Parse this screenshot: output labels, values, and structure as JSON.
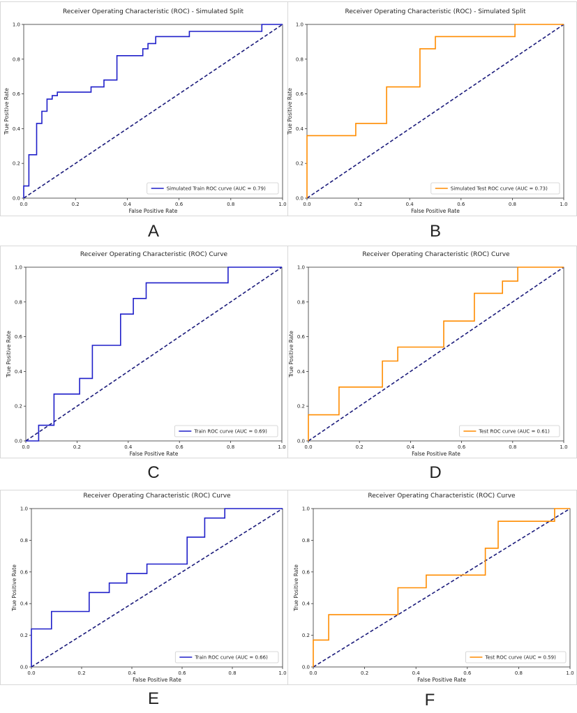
{
  "colors": {
    "train": "#1f1fc9",
    "test": "#ff8c00",
    "diagonal": "#1a1a7a",
    "axis": "#333333"
  },
  "panel_letters": {
    "A": "A",
    "B": "B",
    "C": "C",
    "D": "D",
    "E": "E",
    "F": "F"
  },
  "chart_data": [
    {
      "id": "A",
      "type": "line",
      "title": "Receiver Operating Characteristic (ROC) - Simulated Split",
      "xlabel": "False Positive Rate",
      "ylabel": "True Positive Rate",
      "xlim": [
        0,
        1
      ],
      "ylim": [
        0,
        1
      ],
      "xticks": [
        "0.0",
        "0.2",
        "0.4",
        "0.6",
        "0.8",
        "1.0"
      ],
      "yticks": [
        "0.0",
        "0.2",
        "0.4",
        "0.6",
        "0.8",
        "1.0"
      ],
      "legend": "bottom-right",
      "series": [
        {
          "name": "Simulated Train ROC curve (AUC = 0.79)",
          "color": "train",
          "fpr": [
            0,
            0,
            0.02,
            0.02,
            0.05,
            0.05,
            0.07,
            0.07,
            0.09,
            0.09,
            0.11,
            0.11,
            0.13,
            0.13,
            0.26,
            0.26,
            0.31,
            0.31,
            0.36,
            0.36,
            0.46,
            0.46,
            0.48,
            0.48,
            0.51,
            0.51,
            0.64,
            0.64,
            0.92,
            0.92,
            1.0
          ],
          "tpr": [
            0,
            0.07,
            0.07,
            0.25,
            0.25,
            0.43,
            0.43,
            0.5,
            0.5,
            0.57,
            0.57,
            0.59,
            0.59,
            0.61,
            0.61,
            0.64,
            0.64,
            0.68,
            0.68,
            0.82,
            0.82,
            0.86,
            0.86,
            0.89,
            0.89,
            0.93,
            0.93,
            0.96,
            0.96,
            1.0,
            1.0
          ]
        }
      ]
    },
    {
      "id": "B",
      "type": "line",
      "title": "Receiver Operating Characteristic (ROC) - Simulated Split",
      "xlabel": "False Positive Rate",
      "ylabel": "True Positive Rate",
      "xlim": [
        0,
        1
      ],
      "ylim": [
        0,
        1
      ],
      "xticks": [
        "0.0",
        "0.2",
        "0.4",
        "0.6",
        "0.8",
        "1.0"
      ],
      "yticks": [
        "0.0",
        "0.2",
        "0.4",
        "0.6",
        "0.8",
        "1.0"
      ],
      "legend": "bottom-right",
      "series": [
        {
          "name": "Simulated Test ROC curve (AUC = 0.73)",
          "color": "test",
          "fpr": [
            0,
            0,
            0.19,
            0.19,
            0.31,
            0.31,
            0.44,
            0.44,
            0.5,
            0.5,
            0.81,
            0.81,
            1.0
          ],
          "tpr": [
            0,
            0.36,
            0.36,
            0.43,
            0.43,
            0.64,
            0.64,
            0.86,
            0.86,
            0.93,
            0.93,
            1.0,
            1.0
          ]
        }
      ]
    },
    {
      "id": "C",
      "type": "line",
      "title": "Receiver Operating Characteristic (ROC) Curve",
      "xlabel": "False Positive Rate",
      "ylabel": "True Positive Rate",
      "xlim": [
        0,
        1
      ],
      "ylim": [
        0,
        1
      ],
      "xticks": [
        "0.0",
        "0.2",
        "0.4",
        "0.6",
        "0.8",
        "1.0"
      ],
      "yticks": [
        "0.0",
        "0.2",
        "0.4",
        "0.6",
        "0.8",
        "1.0"
      ],
      "legend": "bottom-right",
      "series": [
        {
          "name": "Train ROC curve (AUC = 0.69)",
          "color": "train",
          "fpr": [
            0,
            0.05,
            0.05,
            0.11,
            0.11,
            0.21,
            0.21,
            0.26,
            0.26,
            0.37,
            0.37,
            0.42,
            0.42,
            0.47,
            0.47,
            0.79,
            0.79,
            1.0
          ],
          "tpr": [
            0,
            0,
            0.09,
            0.09,
            0.27,
            0.27,
            0.36,
            0.36,
            0.55,
            0.55,
            0.73,
            0.73,
            0.82,
            0.82,
            0.91,
            0.91,
            1.0,
            1.0
          ]
        }
      ]
    },
    {
      "id": "D",
      "type": "line",
      "title": "Receiver Operating Characteristic (ROC) Curve",
      "xlabel": "False Positive Rate",
      "ylabel": "True Positive Rate",
      "xlim": [
        0,
        1
      ],
      "ylim": [
        0,
        1
      ],
      "xticks": [
        "0.0",
        "0.2",
        "0.4",
        "0.6",
        "0.8",
        "1.0"
      ],
      "yticks": [
        "0.0",
        "0.2",
        "0.4",
        "0.6",
        "0.8",
        "1.0"
      ],
      "legend": "bottom-right",
      "series": [
        {
          "name": "Test ROC curve (AUC = 0.61)",
          "color": "test",
          "fpr": [
            0,
            0,
            0.12,
            0.12,
            0.29,
            0.29,
            0.35,
            0.35,
            0.53,
            0.53,
            0.65,
            0.65,
            0.76,
            0.76,
            0.82,
            0.82,
            1.0
          ],
          "tpr": [
            0,
            0.15,
            0.15,
            0.31,
            0.31,
            0.46,
            0.46,
            0.54,
            0.54,
            0.69,
            0.69,
            0.85,
            0.85,
            0.92,
            0.92,
            1.0,
            1.0
          ]
        }
      ]
    },
    {
      "id": "E",
      "type": "line",
      "title": "Receiver Operating Characteristic (ROC) Curve",
      "xlabel": "False Positive Rate",
      "ylabel": "True Positive Rate",
      "xlim": [
        0,
        1
      ],
      "ylim": [
        0,
        1
      ],
      "xticks": [
        "0.0",
        "0.2",
        "0.4",
        "0.6",
        "0.8",
        "1.0"
      ],
      "yticks": [
        "0.0",
        "0.2",
        "0.4",
        "0.6",
        "0.8",
        "1.0"
      ],
      "legend": "bottom-right",
      "series": [
        {
          "name": "Train ROC curve (AUC = 0.66)",
          "color": "train",
          "fpr": [
            0,
            0,
            0.08,
            0.08,
            0.23,
            0.23,
            0.31,
            0.31,
            0.38,
            0.38,
            0.46,
            0.46,
            0.62,
            0.62,
            0.69,
            0.69,
            0.77,
            0.77,
            1.0
          ],
          "tpr": [
            0,
            0.24,
            0.24,
            0.35,
            0.35,
            0.47,
            0.47,
            0.53,
            0.53,
            0.59,
            0.59,
            0.65,
            0.65,
            0.82,
            0.82,
            0.94,
            0.94,
            1.0,
            1.0
          ]
        }
      ]
    },
    {
      "id": "F",
      "type": "line",
      "title": "Receiver Operating Characteristic (ROC) Curve",
      "xlabel": "False Positive Rate",
      "ylabel": "True Positive Rate",
      "xlim": [
        0,
        1
      ],
      "ylim": [
        0,
        1
      ],
      "xticks": [
        "0.0",
        "0.2",
        "0.4",
        "0.6",
        "0.8",
        "1.0"
      ],
      "yticks": [
        "0.0",
        "0.2",
        "0.4",
        "0.6",
        "0.8",
        "1.0"
      ],
      "legend": "bottom-right",
      "series": [
        {
          "name": "Test ROC curve (AUC = 0.59)",
          "color": "test",
          "fpr": [
            0,
            0,
            0.06,
            0.06,
            0.33,
            0.33,
            0.44,
            0.44,
            0.67,
            0.67,
            0.72,
            0.72,
            0.94,
            0.94,
            1.0
          ],
          "tpr": [
            0,
            0.17,
            0.17,
            0.33,
            0.33,
            0.5,
            0.5,
            0.58,
            0.58,
            0.75,
            0.75,
            0.92,
            0.92,
            1.0,
            1.0
          ]
        }
      ]
    }
  ]
}
